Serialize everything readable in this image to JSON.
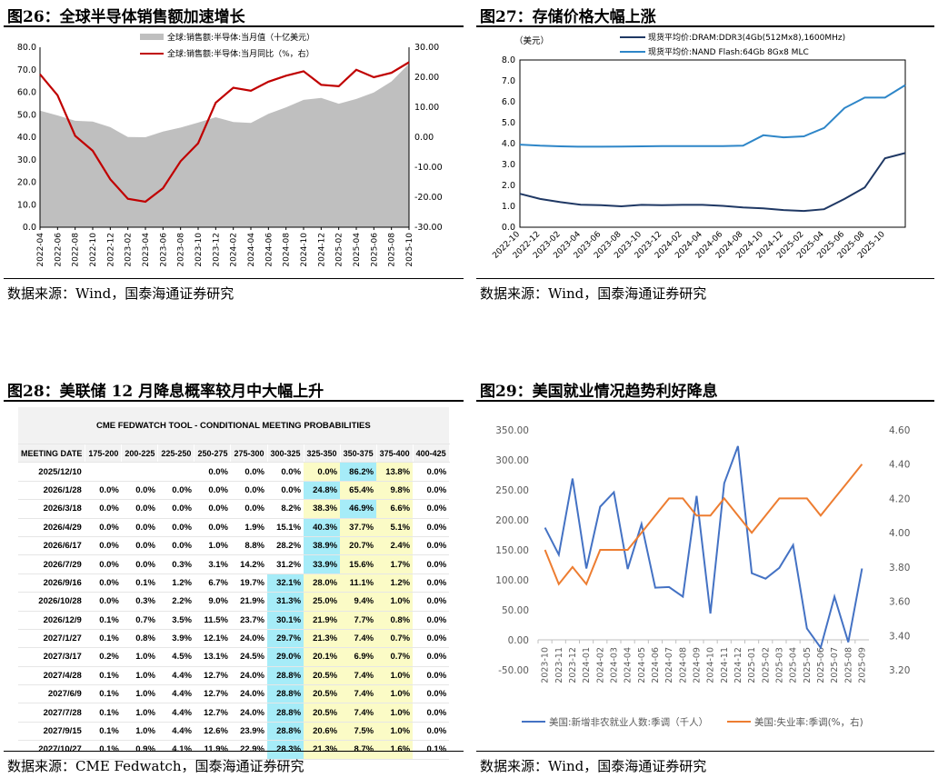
{
  "fig26": {
    "title": "图26：全球半导体销售额加速增长",
    "source": "数据来源：Wind，国泰海通证券研究",
    "legend": [
      "全球:销售额:半导体:当月值（十亿美元）",
      "全球:销售额:半导体:当月同比（%，右）"
    ],
    "colors": {
      "area": "#bfbfbf",
      "line": "#c00000"
    }
  },
  "fig27": {
    "title": "图27：存储价格大幅上涨",
    "source": "数据来源：Wind，国泰海通证券研究",
    "unit": "（美元）",
    "legend": [
      "现货平均价:DRAM:DDR3(4Gb(512Mx8),1600MHz)",
      "现货平均价:NAND Flash:64Gb 8Gx8 MLC"
    ],
    "colors": {
      "dram": "#1f3864",
      "nand": "#2e86c8"
    }
  },
  "fig28": {
    "title": "图28：美联储 12 月降息概率较月中大幅上升",
    "source": "数据来源：CME Fedwatch，国泰海通证券研究",
    "table_title": "CME FEDWATCH TOOL - CONDITIONAL MEETING PROBABILITIES",
    "columns": [
      "MEETING DATE",
      "175-200",
      "200-225",
      "225-250",
      "250-275",
      "275-300",
      "300-325",
      "325-350",
      "350-375",
      "375-400",
      "400-425"
    ],
    "rows": [
      [
        "2025/12/10",
        "",
        "",
        "",
        "0.0%",
        "0.0%",
        "0.0%",
        "0.0%",
        "86.2%",
        "13.8%",
        "0.0%"
      ],
      [
        "2026/1/28",
        "0.0%",
        "0.0%",
        "0.0%",
        "0.0%",
        "0.0%",
        "0.0%",
        "24.8%",
        "65.4%",
        "9.8%",
        "0.0%"
      ],
      [
        "2026/3/18",
        "0.0%",
        "0.0%",
        "0.0%",
        "0.0%",
        "0.0%",
        "8.2%",
        "38.3%",
        "46.9%",
        "6.6%",
        "0.0%"
      ],
      [
        "2026/4/29",
        "0.0%",
        "0.0%",
        "0.0%",
        "0.0%",
        "1.9%",
        "15.1%",
        "40.3%",
        "37.7%",
        "5.1%",
        "0.0%"
      ],
      [
        "2026/6/17",
        "0.0%",
        "0.0%",
        "0.0%",
        "1.0%",
        "8.8%",
        "28.2%",
        "38.9%",
        "20.7%",
        "2.4%",
        "0.0%"
      ],
      [
        "2026/7/29",
        "0.0%",
        "0.0%",
        "0.3%",
        "3.1%",
        "14.2%",
        "31.2%",
        "33.9%",
        "15.6%",
        "1.7%",
        "0.0%"
      ],
      [
        "2026/9/16",
        "0.0%",
        "0.1%",
        "1.2%",
        "6.7%",
        "19.7%",
        "32.1%",
        "28.0%",
        "11.1%",
        "1.2%",
        "0.0%"
      ],
      [
        "2026/10/28",
        "0.0%",
        "0.3%",
        "2.2%",
        "9.0%",
        "21.9%",
        "31.3%",
        "25.0%",
        "9.4%",
        "1.0%",
        "0.0%"
      ],
      [
        "2026/12/9",
        "0.1%",
        "0.7%",
        "3.5%",
        "11.5%",
        "23.7%",
        "30.1%",
        "21.9%",
        "7.7%",
        "0.8%",
        "0.0%"
      ],
      [
        "2027/1/27",
        "0.1%",
        "0.8%",
        "3.9%",
        "12.1%",
        "24.0%",
        "29.7%",
        "21.3%",
        "7.4%",
        "0.7%",
        "0.0%"
      ],
      [
        "2027/3/17",
        "0.2%",
        "1.0%",
        "4.5%",
        "13.1%",
        "24.5%",
        "29.0%",
        "20.1%",
        "6.9%",
        "0.7%",
        "0.0%"
      ],
      [
        "2027/4/28",
        "0.1%",
        "1.0%",
        "4.4%",
        "12.7%",
        "24.0%",
        "28.8%",
        "20.5%",
        "7.4%",
        "1.0%",
        "0.0%"
      ],
      [
        "2027/6/9",
        "0.1%",
        "1.0%",
        "4.4%",
        "12.7%",
        "24.0%",
        "28.8%",
        "20.5%",
        "7.4%",
        "1.0%",
        "0.0%"
      ],
      [
        "2027/7/28",
        "0.1%",
        "1.0%",
        "4.4%",
        "12.7%",
        "24.0%",
        "28.8%",
        "20.5%",
        "7.4%",
        "1.0%",
        "0.0%"
      ],
      [
        "2027/9/15",
        "0.1%",
        "1.0%",
        "4.4%",
        "12.6%",
        "23.9%",
        "28.8%",
        "20.6%",
        "7.5%",
        "1.0%",
        "0.0%"
      ],
      [
        "2027/10/27",
        "0.1%",
        "0.9%",
        "4.1%",
        "11.9%",
        "22.9%",
        "28.3%",
        "21.3%",
        "8.7%",
        "1.6%",
        "0.1%"
      ]
    ],
    "highlight_blue_col": [
      8,
      7,
      8,
      7,
      7,
      7,
      6,
      6,
      6,
      6,
      6,
      6,
      6,
      6,
      6,
      6
    ],
    "highlight_yellow_cols": [
      7,
      8,
      9
    ],
    "colors": {
      "blue": "#a6ecf8",
      "yellow": "#fbfbc6"
    }
  },
  "fig29": {
    "title": "图29：美国就业情况趋势利好降息",
    "source": "数据来源：Wind，国泰海通证券研究",
    "legend": [
      "美国:新增非农就业人数:季调（千人）",
      "美国:失业率:季调(%，右)"
    ],
    "colors": {
      "nfp": "#4472c4",
      "ur": "#ed7d31"
    }
  },
  "chart_data": [
    {
      "id": "fig26",
      "type": "area",
      "x": [
        "2022-04",
        "2022-06",
        "2022-08",
        "2022-10",
        "2022-12",
        "2023-02",
        "2023-04",
        "2023-06",
        "2023-08",
        "2023-10",
        "2023-12",
        "2024-02",
        "2024-04",
        "2024-06",
        "2024-08",
        "2024-10",
        "2024-12",
        "2025-02",
        "2025-04",
        "2025-06",
        "2025-08",
        "2025-10"
      ],
      "xticks": [
        "2022-04",
        "2022-06",
        "2022-08",
        "2022-10",
        "2022-12",
        "2023-02",
        "2023-04",
        "2023-06",
        "2023-08",
        "2023-10",
        "2023-12",
        "2024-02",
        "2024-04",
        "2024-06",
        "2024-08",
        "2024-10",
        "2024-12",
        "2025-02",
        "2025-04",
        "2025-06",
        "2025-08",
        "2025-10"
      ],
      "series": [
        {
          "name": "全球:销售额:半导体:当月值（十亿美元）",
          "axis": "left",
          "values": [
            51.8,
            49.7,
            47.3,
            47.0,
            44.5,
            40.1,
            40.0,
            42.5,
            44.3,
            46.5,
            48.9,
            46.8,
            46.4,
            50.4,
            53.3,
            56.6,
            57.5,
            54.9,
            57.0,
            59.9,
            64.8,
            72.7
          ]
        },
        {
          "name": "全球:销售额:半导体:当月同比（%，右）",
          "axis": "right",
          "values": [
            21.0,
            14.0,
            0.5,
            -4.5,
            -14.0,
            -20.5,
            -21.5,
            -17.0,
            -8.0,
            -2.0,
            11.5,
            16.5,
            15.5,
            18.5,
            20.5,
            22.0,
            17.5,
            17.0,
            22.5,
            20.0,
            21.5,
            25.0
          ]
        }
      ],
      "yleft": {
        "min": 0,
        "max": 80,
        "ticks": [
          "0.0",
          "10.0",
          "20.0",
          "30.0",
          "40.0",
          "50.0",
          "60.0",
          "70.0",
          "80.0"
        ]
      },
      "yright": {
        "min": -30,
        "max": 30,
        "ticks": [
          "-30.00",
          "-20.00",
          "-10.00",
          "0.00",
          "10.00",
          "20.00",
          "30.00"
        ]
      },
      "legend_position": "top"
    },
    {
      "id": "fig27",
      "type": "line",
      "x": [
        "2022-10",
        "2022-12",
        "2023-02",
        "2023-04",
        "2023-06",
        "2023-08",
        "2023-10",
        "2023-12",
        "2024-02",
        "2024-04",
        "2024-06",
        "2024-08",
        "2024-10",
        "2024-12",
        "2025-02",
        "2025-04",
        "2025-06",
        "2025-08",
        "2025-10",
        "2025-11"
      ],
      "xticks": [
        "2022-10",
        "2022-12",
        "2023-02",
        "2023-04",
        "2023-06",
        "2023-08",
        "2023-10",
        "2023-12",
        "2024-02",
        "2024-04",
        "2024-06",
        "2024-08",
        "2024-10",
        "2024-12",
        "2025-02",
        "2025-04",
        "2025-06",
        "2025-08",
        "2025-10"
      ],
      "series": [
        {
          "name": "现货平均价:DRAM:DDR3(4Gb(512Mx8),1600MHz)",
          "values": [
            1.6,
            1.35,
            1.2,
            1.08,
            1.05,
            1.0,
            1.07,
            1.05,
            1.07,
            1.07,
            1.02,
            0.95,
            0.9,
            0.82,
            0.78,
            0.86,
            1.35,
            1.9,
            3.3,
            3.55
          ]
        },
        {
          "name": "现货平均价:NAND Flash:64Gb 8Gx8 MLC",
          "values": [
            3.95,
            3.9,
            3.87,
            3.85,
            3.85,
            3.86,
            3.87,
            3.88,
            3.88,
            3.88,
            3.88,
            3.9,
            4.4,
            4.3,
            4.35,
            4.75,
            5.7,
            6.2,
            6.2,
            6.8
          ]
        }
      ],
      "ylim": [
        0,
        8
      ],
      "yticks": [
        "0.0",
        "1.0",
        "2.0",
        "3.0",
        "4.0",
        "5.0",
        "6.0",
        "7.0",
        "8.0"
      ],
      "ylabel": "（美元）",
      "legend_position": "top"
    },
    {
      "id": "fig29",
      "type": "line",
      "x": [
        "2023-10",
        "2023-11",
        "2023-12",
        "2024-01",
        "2024-02",
        "2024-03",
        "2024-04",
        "2024-05",
        "2024-06",
        "2024-07",
        "2024-08",
        "2024-09",
        "2024-10",
        "2024-11",
        "2024-12",
        "2025-01",
        "2025-02",
        "2025-03",
        "2025-04",
        "2025-05",
        "2025-06",
        "2025-07",
        "2025-08",
        "2025-09"
      ],
      "series": [
        {
          "name": "美国:新增非农就业人数:季调（千人）",
          "axis": "left",
          "values": [
            187,
            142,
            269,
            119,
            222,
            246,
            118,
            193,
            87,
            88,
            72,
            240,
            44,
            261,
            323,
            111,
            102,
            120,
            158,
            19,
            -13,
            72,
            -4,
            119
          ]
        },
        {
          "name": "美国:失业率:季调(%，右)",
          "axis": "right",
          "values": [
            3.9,
            3.7,
            3.8,
            3.7,
            3.9,
            3.9,
            3.9,
            4.0,
            4.1,
            4.2,
            4.2,
            4.1,
            4.1,
            4.2,
            4.1,
            4.0,
            4.1,
            4.2,
            4.2,
            4.2,
            4.1,
            4.2,
            4.3,
            4.4
          ]
        }
      ],
      "yleft": {
        "min": -50,
        "max": 350,
        "ticks": [
          "-50.00",
          "0.00",
          "50.00",
          "100.00",
          "150.00",
          "200.00",
          "250.00",
          "300.00",
          "350.00"
        ]
      },
      "yright": {
        "min": 3.2,
        "max": 4.6,
        "ticks": [
          "3.20",
          "3.40",
          "3.60",
          "3.80",
          "4.00",
          "4.20",
          "4.40",
          "4.60"
        ]
      },
      "legend_position": "bottom"
    }
  ]
}
